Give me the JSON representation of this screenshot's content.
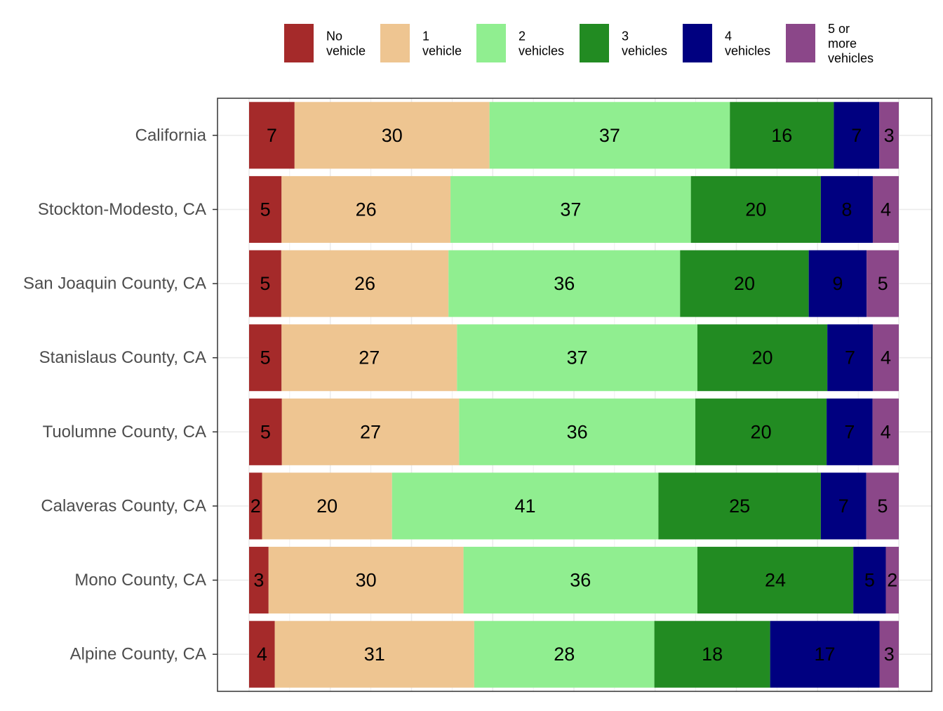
{
  "chart_data": {
    "type": "bar",
    "orientation": "horizontal",
    "stacked": true,
    "normalized": true,
    "categories": [
      "California",
      "Stockton-Modesto, CA",
      "San Joaquin County, CA",
      "Stanislaus County, CA",
      "Tuolumne County, CA",
      "Calaveras County, CA",
      "Mono County, CA",
      "Alpine County, CA"
    ],
    "series": [
      {
        "name": "No\nvehicle",
        "color": "#a52a2a",
        "values": [
          7,
          5,
          5,
          5,
          5,
          2,
          3,
          4
        ]
      },
      {
        "name": "1\nvehicle",
        "color": "#eec591",
        "values": [
          30,
          26,
          26,
          27,
          27,
          20,
          30,
          31
        ]
      },
      {
        "name": "2\nvehicles",
        "color": "#90ee90",
        "values": [
          37,
          37,
          36,
          37,
          36,
          41,
          36,
          28
        ]
      },
      {
        "name": "3\nvehicles",
        "color": "#228b22",
        "values": [
          16,
          20,
          20,
          20,
          20,
          25,
          24,
          18
        ]
      },
      {
        "name": "4\nvehicles",
        "color": "#000080",
        "values": [
          7,
          8,
          9,
          7,
          7,
          7,
          5,
          17
        ]
      },
      {
        "name": "5 or\nmore\nvehicles",
        "color": "#8b4789",
        "values": [
          3,
          4,
          5,
          4,
          4,
          5,
          2,
          3
        ]
      }
    ],
    "xlim": [
      0,
      100
    ],
    "x_tick_labels": false,
    "grid": true,
    "legend_position": "top",
    "title": "",
    "xlabel": "",
    "ylabel": ""
  }
}
